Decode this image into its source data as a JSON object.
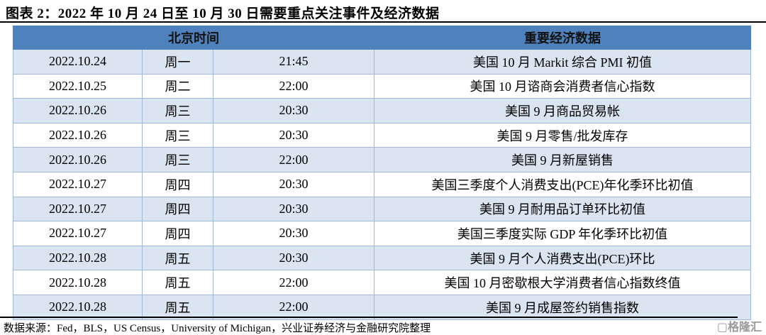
{
  "title": "图表 2：2022 年 10 月 24 日至 10 月 30 日需要重点关注事件及经济数据",
  "header": {
    "beijing_time": "北京时间",
    "data": "重要经济数据"
  },
  "rows": [
    {
      "date": "2022.10.24",
      "day": "周一",
      "time": "21:45",
      "event": "美国 10 月 Markit 综合 PMI 初值"
    },
    {
      "date": "2022.10.25",
      "day": "周二",
      "time": "22:00",
      "event": "美国 10 月谘商会消费者信心指数"
    },
    {
      "date": "2022.10.26",
      "day": "周三",
      "time": "20:30",
      "event": "美国 9 月商品贸易帐"
    },
    {
      "date": "2022.10.26",
      "day": "周三",
      "time": "20:30",
      "event": "美国 9 月零售/批发库存"
    },
    {
      "date": "2022.10.26",
      "day": "周三",
      "time": "22:00",
      "event": "美国 9 月新屋销售"
    },
    {
      "date": "2022.10.27",
      "day": "周四",
      "time": "20:30",
      "event": "美国三季度个人消费支出(PCE)年化季环比初值"
    },
    {
      "date": "2022.10.27",
      "day": "周四",
      "time": "20:30",
      "event": "美国 9 月耐用品订单环比初值"
    },
    {
      "date": "2022.10.27",
      "day": "周四",
      "time": "20:30",
      "event": "美国三季度实际 GDP 年化季环比初值"
    },
    {
      "date": "2022.10.28",
      "day": "周五",
      "time": "20:30",
      "event": "美国 9 月个人消费支出(PCE)环比"
    },
    {
      "date": "2022.10.28",
      "day": "周五",
      "time": "22:00",
      "event": "美国 10 月密歇根大学消费者信心指数终值"
    },
    {
      "date": "2022.10.28",
      "day": "周五",
      "time": "22:00",
      "event": "美国 9 月成屋签约销售指数"
    }
  ],
  "source": "数据来源：Fed，BLS，US Census，University of Michigan，兴业证券经济与金融研究院整理",
  "watermark": "格隆汇",
  "colors": {
    "header_bg": "#4f81bd",
    "odd_row_bg": "#dbe4f1"
  }
}
